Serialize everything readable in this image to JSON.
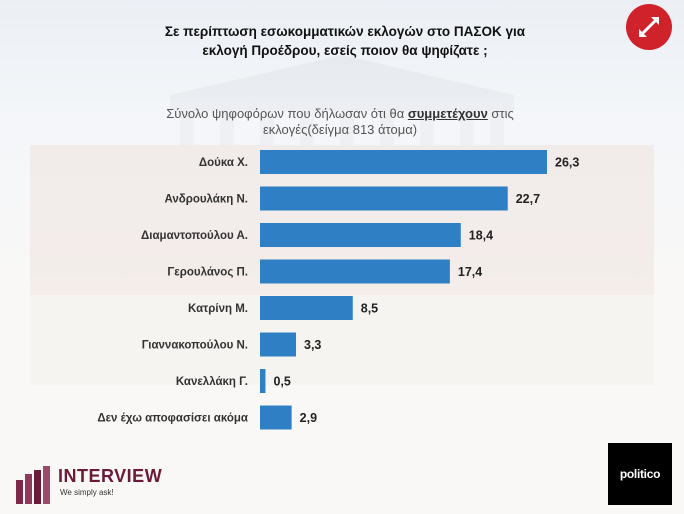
{
  "title_line1": "Σε περίπτωση εσωκομματικών εκλογών στο ΠΑΣΟΚ για",
  "title_line2": "εκλογή Προέδρου, εσείς ποιον θα ψηφίζατε ;",
  "subtitle_pre": "Σύνολο ψηφοφόρων που δήλωσαν ότι θα ",
  "subtitle_em": "συμμετέχουν",
  "subtitle_post": " στις",
  "subtitle_line2": "εκλογές(δείγμα 813 άτομα)",
  "logos": {
    "interview_name": "INTERVIEW",
    "interview_tag": "We simply ask!",
    "politico": "politico"
  },
  "colors": {
    "bar": "#2e7fc3",
    "accent": "#d0222a"
  },
  "icons": {
    "expand": "expand-arrows-icon"
  },
  "chart_data": {
    "type": "bar",
    "orientation": "horizontal",
    "categories": [
      "Δούκα Χ.",
      "Ανδρουλάκη Ν.",
      "Διαμαντοπούλου Α.",
      "Γερουλάνος Π.",
      "Κατρίνη Μ.",
      "Γιαννακοπούλου Ν.",
      "Κανελλάκη Γ.",
      "Δεν έχω αποφασίσει ακόμα"
    ],
    "values": [
      26.3,
      22.7,
      18.4,
      17.4,
      8.5,
      3.3,
      0.5,
      2.9
    ],
    "value_labels": [
      "26,3",
      "22,7",
      "18,4",
      "17,4",
      "8,5",
      "3,3",
      "0,5",
      "2,9"
    ],
    "xlim": [
      0,
      30
    ],
    "grid": false,
    "legend": "none"
  }
}
